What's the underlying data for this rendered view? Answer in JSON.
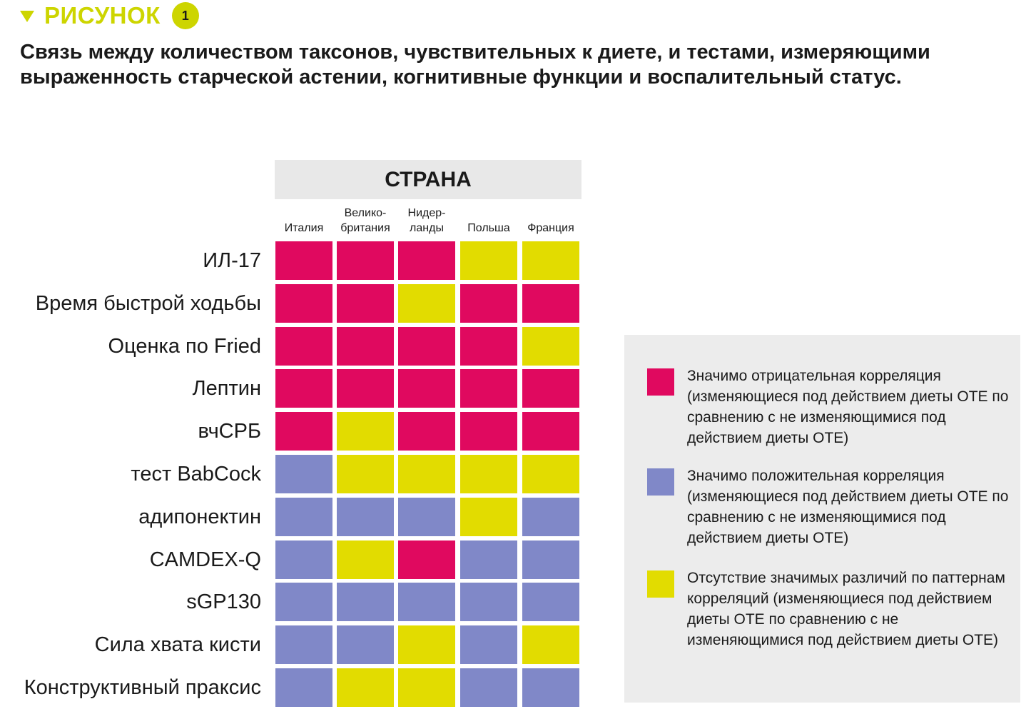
{
  "figure": {
    "label": "РИСУНОК",
    "number": "1"
  },
  "title": "Связь между количеством таксонов, чувствительных к диете, и тестами, измеряющими выраженность старческой астении, когнитивные функции и воспалительный статус.",
  "colors": {
    "negative": "#e0095f",
    "positive": "#8088c8",
    "none": "#e2dc00",
    "accent": "#cdd500",
    "band": "#e8e8e8",
    "legend_bg": "#ececec"
  },
  "chart_data": {
    "type": "heatmap",
    "column_group_title": "СТРАНА",
    "columns": [
      "Италия",
      "Велико-\nбритания",
      "Нидер-\nланды",
      "Польша",
      "Франция"
    ],
    "rows": [
      "ИЛ-17",
      "Время быстрой ходьбы",
      "Оценка по Fried",
      "Лептин",
      "вчСРБ",
      "тест BabCock",
      "адипонектин",
      "CAMDEX-Q",
      "sGP130",
      "Сила хвата кисти",
      "Конструктивный праксис"
    ],
    "values": [
      [
        "negative",
        "negative",
        "negative",
        "none",
        "none"
      ],
      [
        "negative",
        "negative",
        "none",
        "negative",
        "negative"
      ],
      [
        "negative",
        "negative",
        "negative",
        "negative",
        "none"
      ],
      [
        "negative",
        "negative",
        "negative",
        "negative",
        "negative"
      ],
      [
        "negative",
        "none",
        "negative",
        "negative",
        "negative"
      ],
      [
        "positive",
        "none",
        "none",
        "none",
        "none"
      ],
      [
        "positive",
        "positive",
        "positive",
        "none",
        "positive"
      ],
      [
        "positive",
        "none",
        "negative",
        "positive",
        "positive"
      ],
      [
        "positive",
        "positive",
        "positive",
        "positive",
        "positive"
      ],
      [
        "positive",
        "positive",
        "none",
        "positive",
        "none"
      ],
      [
        "positive",
        "none",
        "none",
        "positive",
        "positive"
      ]
    ],
    "legend": [
      {
        "key": "negative",
        "text": "Значимо отрицательная корреляция (изменяющиеся под действием диеты ОТЕ по сравнению с не изменяющимися под действием диеты ОТЕ)"
      },
      {
        "key": "positive",
        "text": "Значимо положительная корреляция (изменяющиеся под действием диеты ОТЕ по сравнению с не изменяющимися под действием диеты ОТЕ)"
      },
      {
        "key": "none",
        "text": "Отсутствие значимых различий по паттернам корреляций (изменяющиеся под действием диеты ОТЕ по сравнению с не изменяющимися под действием диеты ОТЕ)"
      }
    ]
  }
}
